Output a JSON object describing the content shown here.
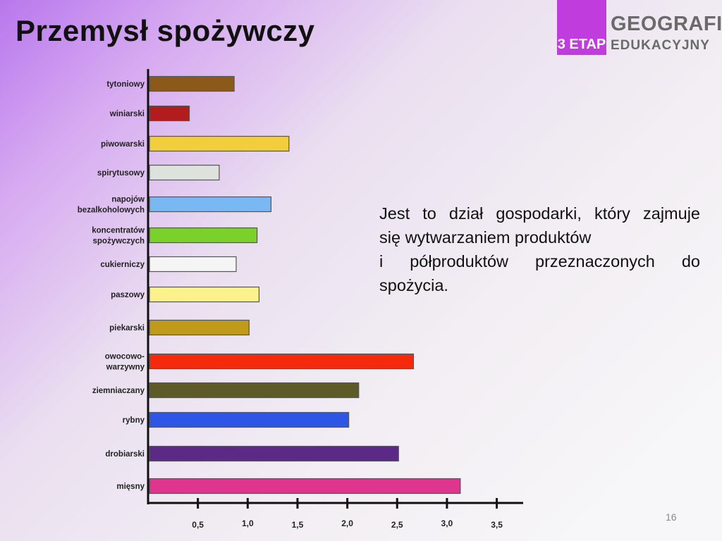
{
  "slide": {
    "title": "Przemysł spożywczy",
    "page_number": "16",
    "description": [
      "Jest to dział gospodarki, który zajmuje",
      "się wytwarzaniem produktów",
      "i półproduktów przeznaczonych do",
      "spożycia."
    ]
  },
  "logo": {
    "badge": "3 ETAP",
    "line1": "GEOGRAFIA",
    "line2": "EDUKACYJNY",
    "color": "#c13cdc"
  },
  "chart_data": {
    "type": "bar",
    "orientation": "horizontal",
    "title": "",
    "xlabel": "",
    "ylabel": "",
    "xlim": [
      0,
      3.7
    ],
    "ticks": [
      {
        "value": 0.5,
        "label": "0,5"
      },
      {
        "value": 1.0,
        "label": "1,0"
      },
      {
        "value": 1.5,
        "label": "1,5"
      },
      {
        "value": 2.0,
        "label": "2,0"
      },
      {
        "value": 2.5,
        "label": "2,5"
      },
      {
        "value": 3.0,
        "label": "3,0"
      },
      {
        "value": 3.5,
        "label": "3,5"
      }
    ],
    "grid": false,
    "categories": [
      {
        "label": [
          "tytoniowy"
        ],
        "value": 0.85,
        "color": "#8b5a1a"
      },
      {
        "label": [
          "winiarski"
        ],
        "value": 0.4,
        "color": "#b31c1c"
      },
      {
        "label": [
          "piwowarski"
        ],
        "value": 1.4,
        "color": "#f2cd3c"
      },
      {
        "label": [
          "spirytusowy"
        ],
        "value": 0.7,
        "color": "#dde3dc"
      },
      {
        "label": [
          "napojów",
          "bezalkoholowych"
        ],
        "value": 1.22,
        "color": "#7ab8f4"
      },
      {
        "label": [
          "koncentratów",
          "spożywczych"
        ],
        "value": 1.08,
        "color": "#7ad12a"
      },
      {
        "label": [
          "cukierniczy"
        ],
        "value": 0.87,
        "color": "#f5f5f5"
      },
      {
        "label": [
          "paszowy"
        ],
        "value": 1.1,
        "color": "#fbf28c"
      },
      {
        "label": [
          "piekarski"
        ],
        "value": 1.0,
        "color": "#bf9a1b"
      },
      {
        "label": [
          "owocowo-",
          "warzywny"
        ],
        "value": 2.65,
        "color": "#f52a0c"
      },
      {
        "label": [
          "ziemniaczany"
        ],
        "value": 2.1,
        "color": "#5e5a28"
      },
      {
        "label": [
          "rybny"
        ],
        "value": 2.0,
        "color": "#2e56e6"
      },
      {
        "label": [
          "drobiarski"
        ],
        "value": 2.5,
        "color": "#5b2a86"
      },
      {
        "label": [
          "mięsny"
        ],
        "value": 3.12,
        "color": "#e0358f"
      }
    ]
  }
}
